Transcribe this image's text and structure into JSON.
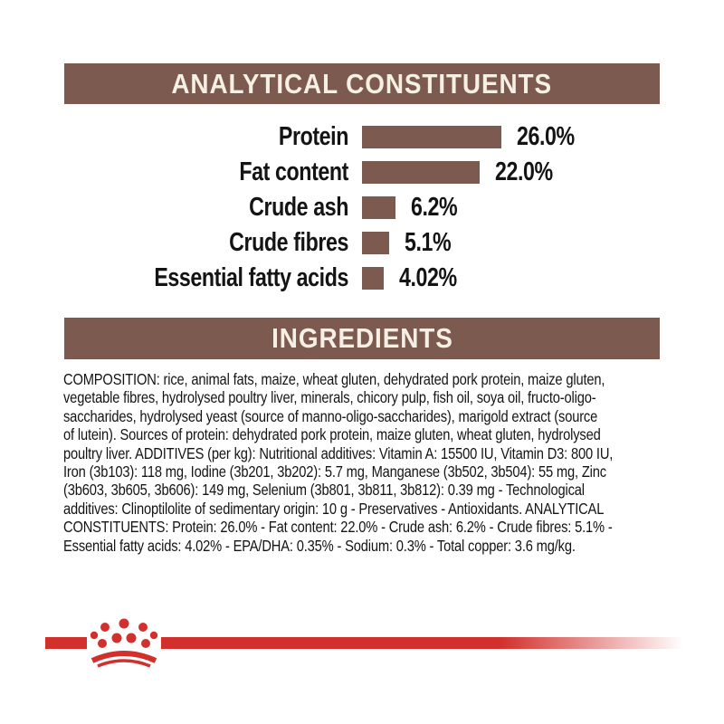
{
  "colors": {
    "header_bar": "#7d5a4f",
    "header_text": "#f6f0e4",
    "bar_fill": "#7d5a4f",
    "body_text": "#141414",
    "brand_red": "#d2302c",
    "background": "#ffffff"
  },
  "chart_data": {
    "type": "bar",
    "orientation": "horizontal",
    "title": "ANALYTICAL CONSTITUENTS",
    "categories": [
      "Protein",
      "Fat content",
      "Crude ash",
      "Crude fibres",
      "Essential fatty acids"
    ],
    "values": [
      26.0,
      22.0,
      6.2,
      5.1,
      4.02
    ],
    "value_labels": [
      "26.0%",
      "22.0%",
      "6.2%",
      "5.1%",
      "4.02%"
    ],
    "unit": "%",
    "bar_color": "#7d5a4f",
    "grid": "off",
    "legend": "none",
    "value_label_position": "right-of-bar"
  },
  "ingredients": {
    "title": "INGREDIENTS",
    "lines": [
      "COMPOSITION: rice, animal fats, maize, wheat gluten, dehydrated pork protein, maize gluten,",
      "vegetable fibres, hydrolysed poultry liver, minerals, chicory pulp, fish oil, soya oil, fructo-oligo-",
      "saccharides, hydrolysed yeast (source of manno-oligo-saccharides), marigold extract (source",
      "of lutein). Sources of protein: dehydrated pork protein, maize gluten, wheat gluten, hydrolysed",
      "poultry liver. ADDITIVES (per kg): Nutritional additives: Vitamin A: 15500 IU, Vitamin D3: 800 IU,",
      "Iron (3b103): 118 mg, Iodine (3b201, 3b202): 5.7 mg, Manganese (3b502, 3b504): 55 mg, Zinc",
      "(3b603, 3b605, 3b606): 149 mg, Selenium (3b801, 3b811, 3b812): 0.39 mg - Technological",
      "additives: Clinoptilolite of sedimentary origin: 10 g - Preservatives - Antioxidants. ANALYTICAL",
      "CONSTITUENTS: Protein: 26.0% - Fat content: 22.0% - Crude ash: 6.2% - Crude fibres: 5.1% -",
      "Essential fatty acids: 4.02% - EPA/DHA: 0.35% - Sodium: 0.3% - Total copper: 3.6 mg/kg."
    ]
  },
  "footer": {
    "logo_icon": "royal-canin-crown-logo"
  }
}
